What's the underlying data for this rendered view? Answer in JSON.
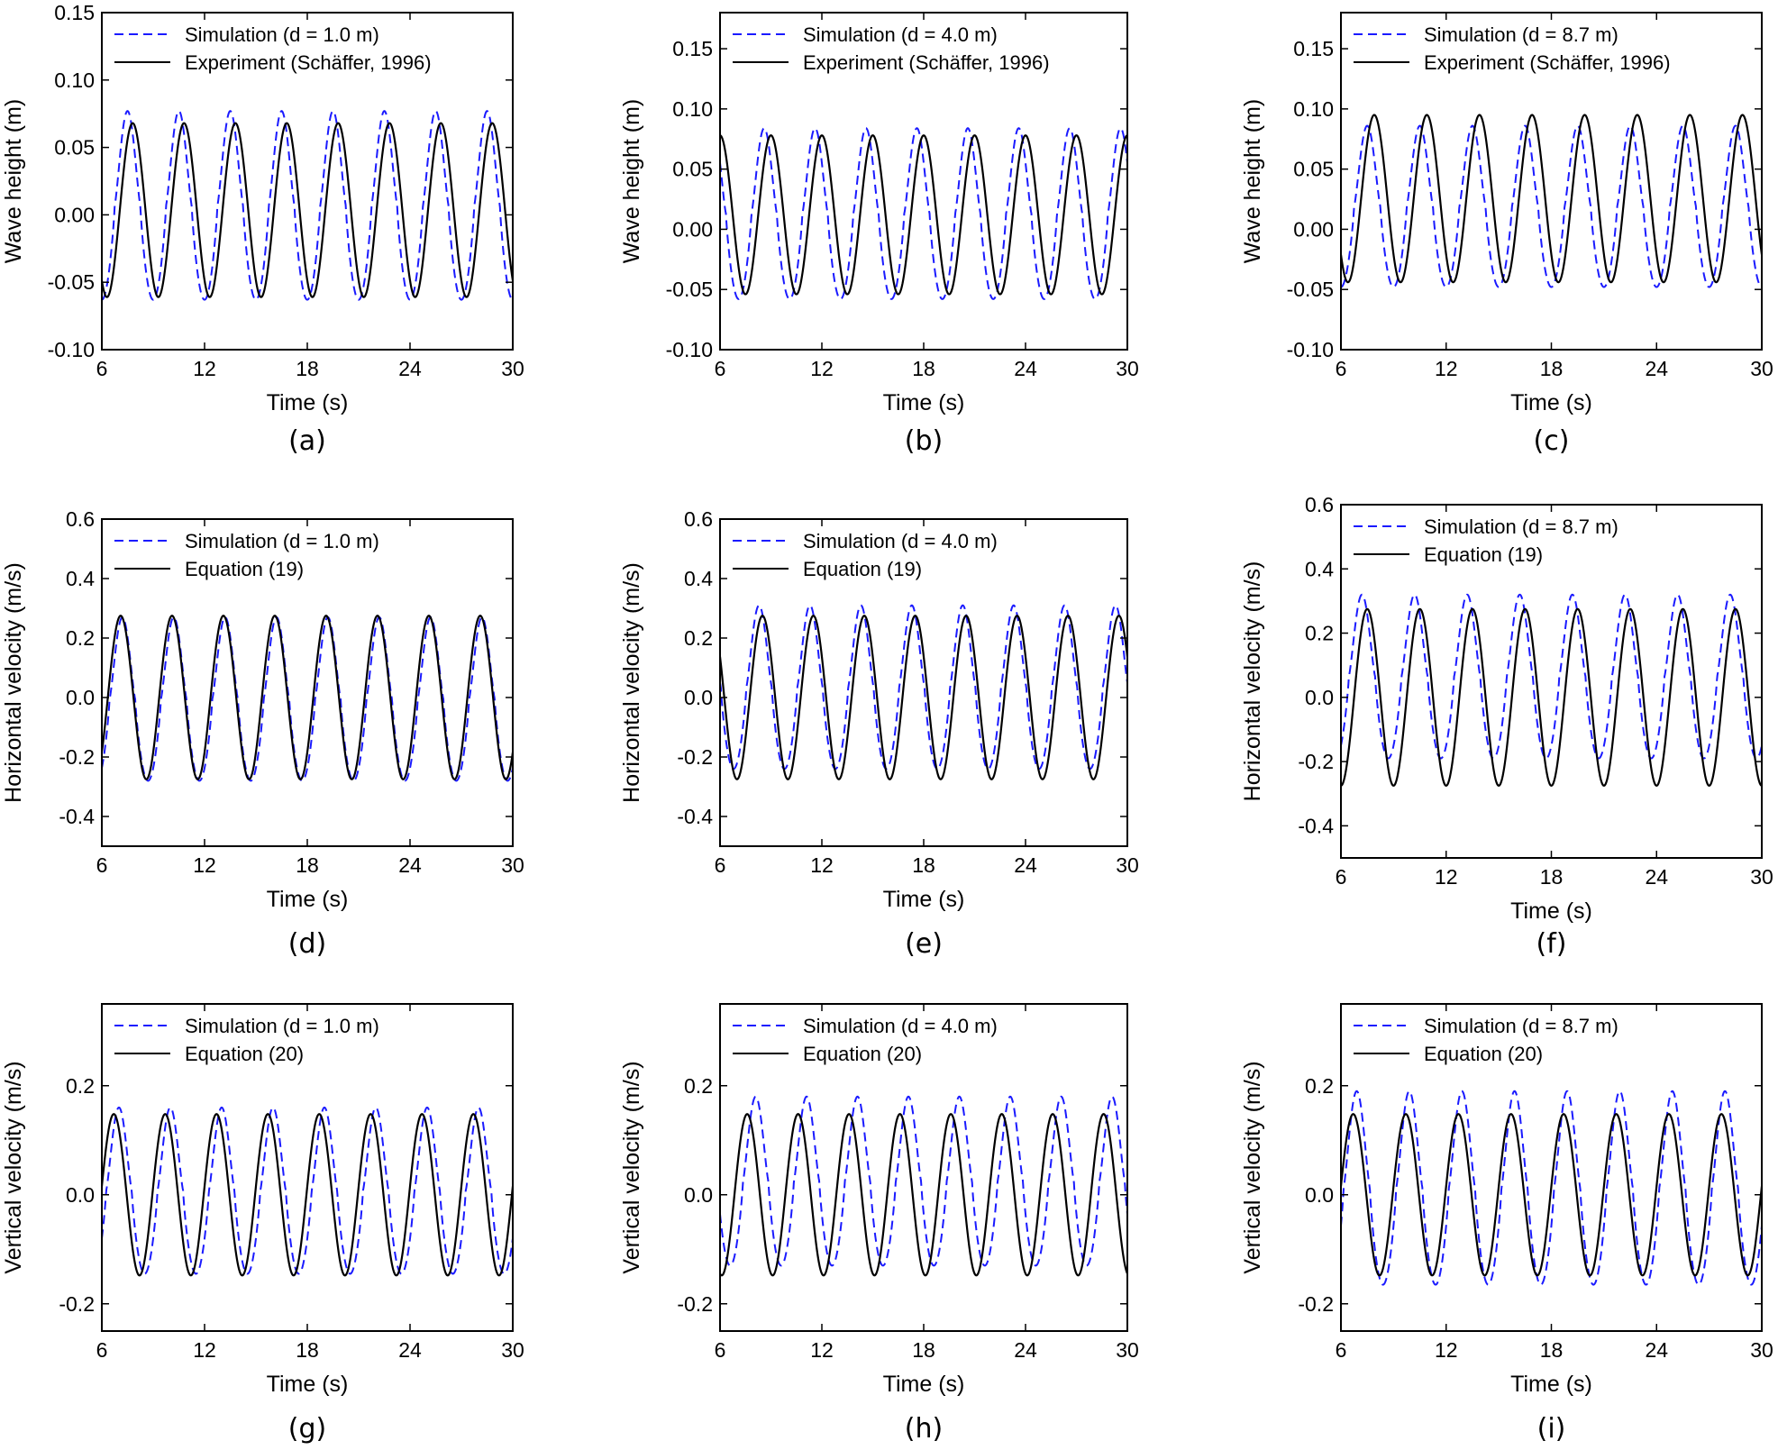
{
  "figure": {
    "xlabel": "Time (s)",
    "series_colors": {
      "simulation": "#1a1aff",
      "reference": "#000000"
    },
    "series_styles": {
      "simulation": "dashed",
      "reference": "solid"
    }
  },
  "chart_data": [
    {
      "panel": "(a)",
      "type": "line",
      "ylabel": "Wave height (m)",
      "xlabel": "Time (s)",
      "xlim": [
        6,
        30
      ],
      "ylim": [
        -0.1,
        0.15
      ],
      "xticks": [
        "6",
        "12",
        "18",
        "24",
        "30"
      ],
      "yticks": [
        "-0.10",
        "-0.05",
        "0.00",
        "0.05",
        "0.10",
        "0.15"
      ],
      "legend_position": "top-left",
      "series": [
        {
          "name": "Simulation (d = 1.0 m)",
          "style": "dashed",
          "color": "#1a1aff",
          "period": 3.0,
          "peak_times": [
            7.5,
            10.6,
            13.6,
            16.7,
            19.7,
            22.7,
            25.7,
            28.7
          ],
          "max": 0.077,
          "min": -0.063
        },
        {
          "name": "Experiment (Schäffer, 1996)",
          "style": "solid",
          "color": "#000000",
          "period": 3.0,
          "peak_times": [
            7.8,
            10.8,
            13.8,
            16.8,
            19.9,
            22.9,
            25.9,
            28.9
          ],
          "max": 0.068,
          "min": -0.061
        }
      ]
    },
    {
      "panel": "(b)",
      "type": "line",
      "ylabel": "Wave height (m)",
      "xlabel": "Time (s)",
      "xlim": [
        6,
        30
      ],
      "ylim": [
        -0.1,
        0.18
      ],
      "xticks": [
        "6",
        "12",
        "18",
        "24",
        "30"
      ],
      "yticks": [
        "-0.10",
        "-0.05",
        "0.00",
        "0.05",
        "0.10",
        "0.15"
      ],
      "legend_position": "top-left",
      "series": [
        {
          "name": "Simulation (d = 4.0 m)",
          "style": "dashed",
          "color": "#1a1aff",
          "period": 3.0,
          "peak_times": [
            8.6,
            11.6,
            14.6,
            17.6,
            20.6,
            23.6,
            26.6,
            29.6
          ],
          "max": 0.084,
          "min": -0.058
        },
        {
          "name": "Experiment (Schäffer, 1996)",
          "style": "solid",
          "color": "#000000",
          "period": 3.0,
          "peak_times": [
            6.0,
            9.0,
            12.0,
            15.0,
            18.0,
            21.0,
            24.0,
            27.0,
            30.0
          ],
          "max": 0.078,
          "min": -0.054
        }
      ]
    },
    {
      "panel": "(c)",
      "type": "line",
      "ylabel": "Wave height (m)",
      "xlabel": "Time (s)",
      "xlim": [
        6,
        30
      ],
      "ylim": [
        -0.1,
        0.18
      ],
      "xticks": [
        "6",
        "12",
        "18",
        "24",
        "30"
      ],
      "yticks": [
        "-0.10",
        "-0.05",
        "0.00",
        "0.05",
        "0.10",
        "0.15"
      ],
      "legend_position": "top-left",
      "series": [
        {
          "name": "Simulation (d = 8.7 m)",
          "style": "dashed",
          "color": "#1a1aff",
          "period": 3.0,
          "peak_times": [
            7.5,
            10.6,
            13.6,
            16.6,
            19.6,
            22.6,
            25.6,
            28.6
          ],
          "max": 0.086,
          "min": -0.048
        },
        {
          "name": "Experiment (Schäffer, 1996)",
          "style": "solid",
          "color": "#000000",
          "period": 3.0,
          "peak_times": [
            7.9,
            10.9,
            13.9,
            16.9,
            19.9,
            22.9,
            25.9,
            28.9
          ],
          "max": 0.095,
          "min": -0.044
        }
      ]
    },
    {
      "panel": "(d)",
      "type": "line",
      "ylabel": "Horizontal velocity (m/s)",
      "xlabel": "Time (s)",
      "xlim": [
        6,
        30
      ],
      "ylim": [
        -0.5,
        0.6
      ],
      "xticks": [
        "6",
        "12",
        "18",
        "24",
        "30"
      ],
      "yticks": [
        "-0.4",
        "-0.2",
        "0.0",
        "0.2",
        "0.4",
        "0.6"
      ],
      "legend_position": "top-left",
      "series": [
        {
          "name": "Simulation (d = 1.0 m)",
          "style": "dashed",
          "color": "#1a1aff",
          "period": 3.0,
          "peak_times": [
            7.2,
            10.2,
            13.2,
            16.2,
            19.2,
            22.2,
            25.2,
            28.2
          ],
          "max": 0.27,
          "min": -0.28
        },
        {
          "name": "Equation (19)",
          "style": "solid",
          "color": "#000000",
          "period": 3.0,
          "peak_times": [
            7.1,
            10.1,
            13.1,
            16.1,
            19.1,
            22.1,
            25.1,
            28.1
          ],
          "max": 0.275,
          "min": -0.275
        }
      ]
    },
    {
      "panel": "(e)",
      "type": "line",
      "ylabel": "Horizontal velocity (m/s)",
      "xlabel": "Time (s)",
      "xlim": [
        6,
        30
      ],
      "ylim": [
        -0.5,
        0.6
      ],
      "xticks": [
        "6",
        "12",
        "18",
        "24",
        "30"
      ],
      "yticks": [
        "-0.4",
        "-0.2",
        "0.0",
        "0.2",
        "0.4",
        "0.6"
      ],
      "legend_position": "top-left",
      "series": [
        {
          "name": "Simulation (d = 4.0 m)",
          "style": "dashed",
          "color": "#1a1aff",
          "period": 3.0,
          "peak_times": [
            8.3,
            11.3,
            14.3,
            17.3,
            20.3,
            23.3,
            26.3,
            29.3
          ],
          "max": 0.31,
          "min": -0.24
        },
        {
          "name": "Equation (19)",
          "style": "solid",
          "color": "#000000",
          "period": 3.0,
          "peak_times": [
            8.5,
            11.5,
            14.5,
            17.5,
            20.5,
            23.5,
            26.5,
            29.5
          ],
          "max": 0.275,
          "min": -0.275
        }
      ]
    },
    {
      "panel": "(f)",
      "type": "line",
      "ylabel": "Horizontal velocity (m/s)",
      "xlabel": "Time (s)",
      "xlim": [
        6,
        30
      ],
      "ylim": [
        -0.5,
        0.6
      ],
      "xticks": [
        "6",
        "12",
        "18",
        "24",
        "30"
      ],
      "yticks": [
        "-0.4",
        "-0.2",
        "0.0",
        "0.2",
        "0.4",
        "0.6"
      ],
      "legend_position": "top-left",
      "series": [
        {
          "name": "Simulation (d = 8.7 m)",
          "style": "dashed",
          "color": "#1a1aff",
          "period": 3.0,
          "peak_times": [
            7.2,
            10.2,
            13.2,
            16.2,
            19.2,
            22.2,
            25.2,
            28.2
          ],
          "max": 0.32,
          "min": -0.19
        },
        {
          "name": "Equation (19)",
          "style": "solid",
          "color": "#000000",
          "period": 3.0,
          "peak_times": [
            7.5,
            10.5,
            13.5,
            16.5,
            19.5,
            22.5,
            25.5,
            28.5
          ],
          "max": 0.275,
          "min": -0.275
        }
      ]
    },
    {
      "panel": "(g)",
      "type": "line",
      "ylabel": "Vertical velocity (m/s)",
      "xlabel": "Time (s)",
      "xlim": [
        6,
        30
      ],
      "ylim": [
        -0.25,
        0.35
      ],
      "xticks": [
        "6",
        "12",
        "18",
        "24",
        "30"
      ],
      "yticks": [
        "-0.2",
        "0.0",
        "0.2"
      ],
      "legend_position": "top-left",
      "series": [
        {
          "name": "Simulation (d = 1.0 m)",
          "style": "dashed",
          "color": "#1a1aff",
          "period": 3.0,
          "peak_times": [
            7.0,
            10.0,
            13.0,
            16.0,
            19.0,
            22.0,
            25.0,
            28.0
          ],
          "max": 0.16,
          "min": -0.145
        },
        {
          "name": "Equation (20)",
          "style": "solid",
          "color": "#000000",
          "period": 3.0,
          "peak_times": [
            6.7,
            9.7,
            12.7,
            15.7,
            18.7,
            21.7,
            24.7,
            27.7
          ],
          "max": 0.148,
          "min": -0.148
        }
      ]
    },
    {
      "panel": "(h)",
      "type": "line",
      "ylabel": "Vertical velocity (m/s)",
      "xlabel": "Time (s)",
      "xlim": [
        6,
        30
      ],
      "ylim": [
        -0.25,
        0.35
      ],
      "xticks": [
        "6",
        "12",
        "18",
        "24",
        "30"
      ],
      "yticks": [
        "-0.2",
        "0.0",
        "0.2"
      ],
      "legend_position": "top-left",
      "series": [
        {
          "name": "Simulation (d = 4.0 m)",
          "style": "dashed",
          "color": "#1a1aff",
          "period": 3.0,
          "peak_times": [
            8.1,
            11.1,
            14.1,
            17.1,
            20.1,
            23.1,
            26.1,
            29.1
          ],
          "max": 0.18,
          "min": -0.13
        },
        {
          "name": "Equation (20)",
          "style": "solid",
          "color": "#000000",
          "period": 3.0,
          "peak_times": [
            7.6,
            10.6,
            13.6,
            16.6,
            19.6,
            22.6,
            25.6,
            28.6
          ],
          "max": 0.148,
          "min": -0.148
        }
      ]
    },
    {
      "panel": "(i)",
      "type": "line",
      "ylabel": "Vertical velocity (m/s)",
      "xlabel": "Time (s)",
      "xlim": [
        6,
        30
      ],
      "ylim": [
        -0.25,
        0.35
      ],
      "xticks": [
        "6",
        "12",
        "18",
        "24",
        "30"
      ],
      "yticks": [
        "-0.2",
        "0.0",
        "0.2"
      ],
      "legend_position": "top-left",
      "series": [
        {
          "name": "Simulation (d = 8.7 m)",
          "style": "dashed",
          "color": "#1a1aff",
          "period": 3.0,
          "peak_times": [
            6.9,
            9.9,
            12.9,
            15.9,
            18.9,
            21.9,
            24.9,
            27.9
          ],
          "max": 0.19,
          "min": -0.165
        },
        {
          "name": "Equation (20)",
          "style": "solid",
          "color": "#000000",
          "period": 3.0,
          "peak_times": [
            6.7,
            9.7,
            12.7,
            15.7,
            18.7,
            21.7,
            24.7,
            27.7
          ],
          "max": 0.148,
          "min": -0.148
        }
      ]
    }
  ]
}
